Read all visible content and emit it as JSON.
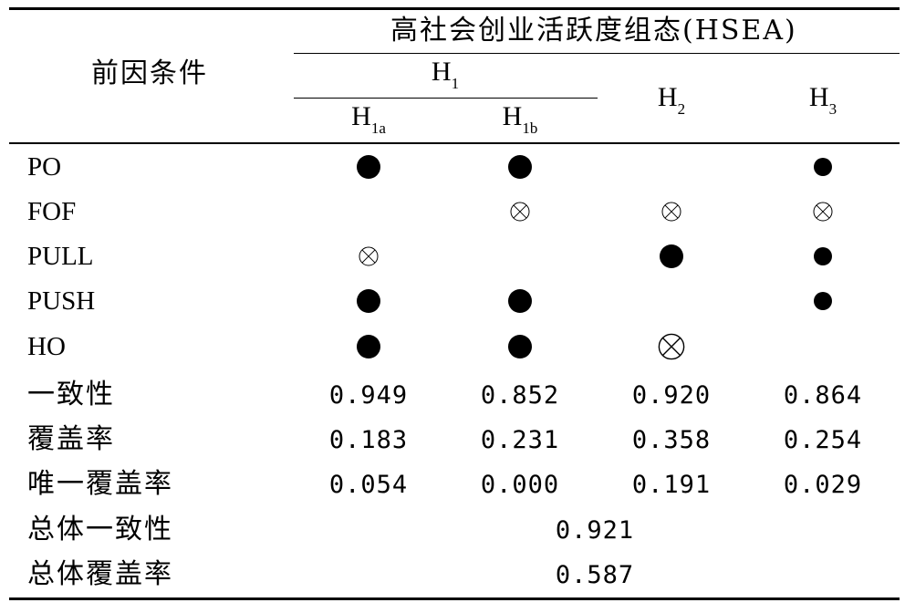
{
  "header": {
    "title": "高社会创业活跃度组态(HSEA)",
    "first_col": "前因条件",
    "h1": {
      "main": "H",
      "sub": "1"
    },
    "h1a": {
      "main": "H",
      "sub": "1a"
    },
    "h1b": {
      "main": "H",
      "sub": "1b"
    },
    "h2": {
      "main": "H",
      "sub": "2"
    },
    "h3": {
      "main": "H",
      "sub": "3"
    }
  },
  "conditions": [
    {
      "label": "PO",
      "cells": [
        "core-present",
        "core-present",
        "",
        "peripheral-present"
      ]
    },
    {
      "label": "FOF",
      "cells": [
        "",
        "peripheral-absent",
        "peripheral-absent",
        "peripheral-absent"
      ]
    },
    {
      "label": "PULL",
      "cells": [
        "peripheral-absent",
        "",
        "core-present",
        "peripheral-present"
      ]
    },
    {
      "label": "PUSH",
      "cells": [
        "core-present",
        "core-present",
        "",
        "peripheral-present"
      ]
    },
    {
      "label": "HO",
      "cells": [
        "core-present",
        "core-present",
        "core-absent",
        ""
      ]
    }
  ],
  "metrics": [
    {
      "label": "一致性",
      "values": [
        "0.949",
        "0.852",
        "0.920",
        "0.864"
      ]
    },
    {
      "label": "覆盖率",
      "values": [
        "0.183",
        "0.231",
        "0.358",
        "0.254"
      ]
    },
    {
      "label": "唯一覆盖率",
      "values": [
        "0.054",
        "0.000",
        "0.191",
        "0.029"
      ]
    }
  ],
  "totals": [
    {
      "label": "总体一致性",
      "value": "0.921"
    },
    {
      "label": "总体覆盖率",
      "value": "0.587"
    }
  ]
}
